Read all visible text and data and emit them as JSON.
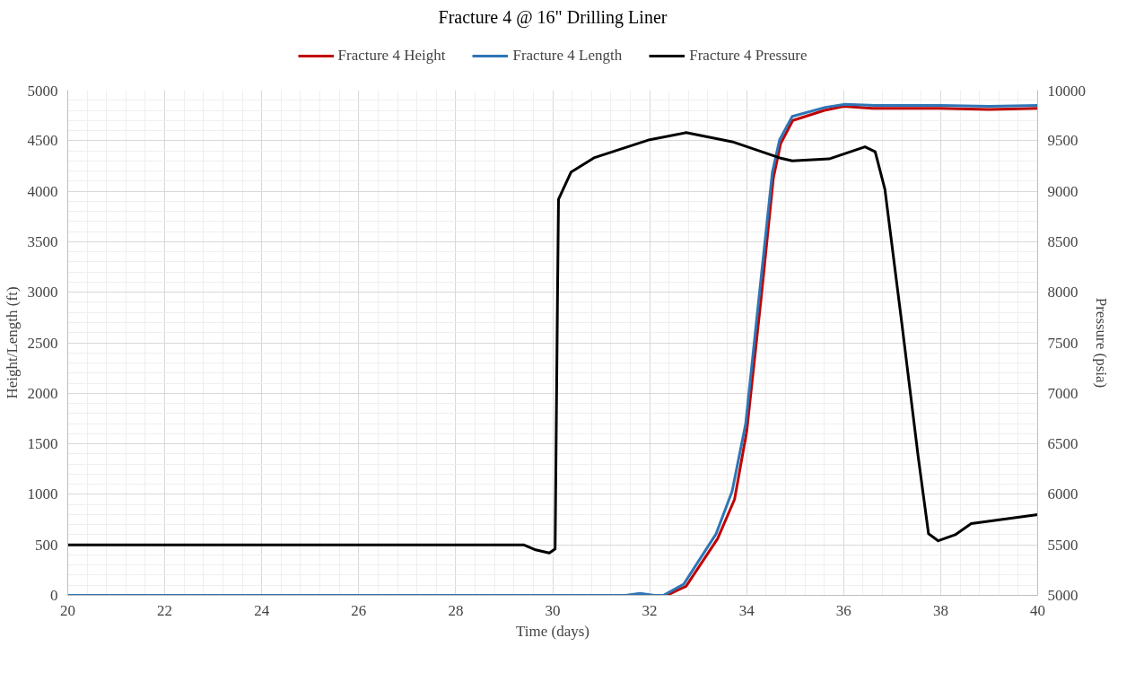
{
  "chart_data": {
    "type": "line",
    "title": "Fracture 4 @ 16\" Drilling Liner",
    "xlabel": "Time (days)",
    "ylabel": "Height/Length (ft)",
    "y2label": "Pressure (psia)",
    "xlim": [
      20,
      40
    ],
    "xticks": [
      20,
      22,
      24,
      26,
      28,
      30,
      32,
      34,
      36,
      38,
      40
    ],
    "ylim": [
      0,
      5000
    ],
    "yticks": [
      0,
      500,
      1000,
      1500,
      2000,
      2500,
      3000,
      3500,
      4000,
      4500,
      5000
    ],
    "y2lim": [
      5000,
      10000
    ],
    "y2ticks": [
      5000,
      5500,
      6000,
      6500,
      7000,
      7500,
      8000,
      8500,
      9000,
      9500,
      10000
    ],
    "grid": true,
    "legend": "top",
    "line_style": "solid",
    "marker": "none",
    "series": [
      {
        "name": "Fracture 4 Height",
        "color": "#c00000",
        "x": [
          32.35,
          32.75,
          33.4,
          33.75,
          34.0,
          34.3,
          34.55,
          34.7,
          34.95,
          35.6,
          36.0,
          36.6,
          38,
          39,
          40
        ],
        "values": [
          0,
          90,
          560,
          950,
          1620,
          2950,
          4130,
          4470,
          4700,
          4800,
          4840,
          4820,
          4820,
          4810,
          4820
        ]
      },
      {
        "name": "Fracture 4 Length",
        "color": "#2e75b6",
        "x": [
          20,
          31.5,
          31.8,
          32.1,
          32.28,
          32.7,
          33.37,
          33.7,
          33.98,
          34.27,
          34.53,
          34.68,
          34.94,
          35.62,
          36.03,
          36.65,
          38,
          39,
          40
        ],
        "values": [
          0,
          0,
          20,
          0,
          0,
          110,
          610,
          1030,
          1700,
          3020,
          4190,
          4510,
          4740,
          4830,
          4860,
          4850,
          4850,
          4840,
          4850
        ]
      },
      {
        "name": "Fracture 4 Pressure",
        "color": "#000000",
        "axis": "y2",
        "x": [
          20,
          29.4,
          29.65,
          29.93,
          30.05,
          30.1,
          30.12,
          30.38,
          30.85,
          32.0,
          32.75,
          33.7,
          34.68,
          34.94,
          35.7,
          36.44,
          36.65,
          36.85,
          37.2,
          37.54,
          37.75,
          37.95,
          38.3,
          38.63,
          40
        ],
        "values": [
          5500,
          5500,
          5450,
          5420,
          5460,
          8000,
          8920,
          9190,
          9330,
          9510,
          9580,
          9490,
          9330,
          9300,
          9320,
          9440,
          9390,
          9020,
          7690,
          6360,
          5610,
          5540,
          5600,
          5710,
          5800
        ]
      }
    ]
  }
}
